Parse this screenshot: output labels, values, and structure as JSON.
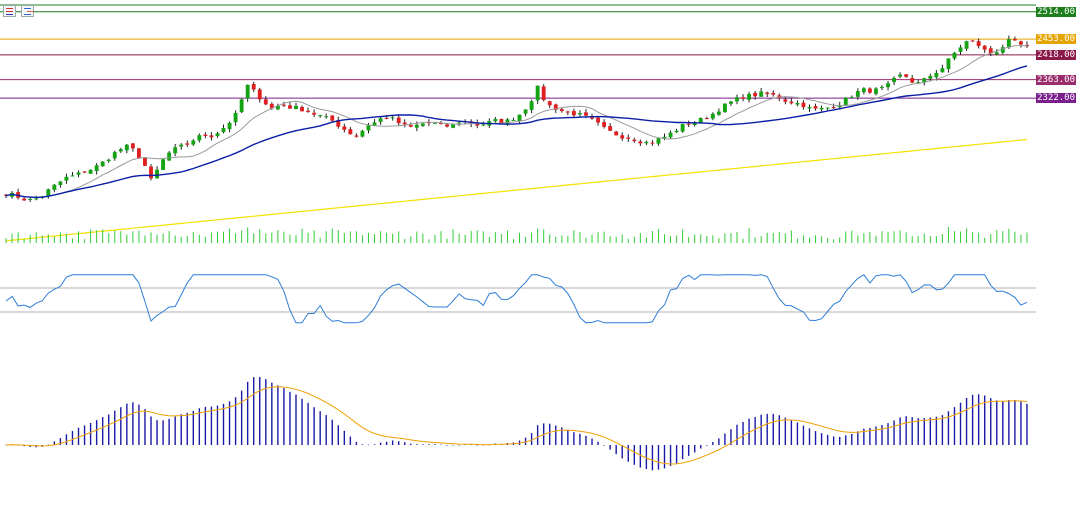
{
  "chart_data": [
    {
      "type": "candlestick",
      "panel": "price",
      "title": "",
      "y_range": [
        2000,
        2540
      ],
      "price_levels": [
        {
          "value": 2514.0,
          "label": "2514.00",
          "color": "#1b7f1b"
        },
        {
          "value": 2453.0,
          "label": "2453.00",
          "color": "#e5a300"
        },
        {
          "value": 2418.0,
          "label": "2418.00",
          "color": "#8b1a4a"
        },
        {
          "value": 2363.0,
          "label": "2363.00",
          "color": "#9b2d6e"
        },
        {
          "value": 2322.0,
          "label": "2322.00",
          "color": "#7a1f8c"
        }
      ],
      "close_path": [
        2110,
        2106,
        2098,
        2095,
        2102,
        2118,
        2132,
        2145,
        2150,
        2158,
        2165,
        2175,
        2190,
        2205,
        2215,
        2205,
        2180,
        2135,
        2178,
        2200,
        2212,
        2218,
        2232,
        2240,
        2238,
        2250,
        2268,
        2290,
        2352,
        2335,
        2315,
        2298,
        2308,
        2302,
        2300,
        2294,
        2286,
        2280,
        2272,
        2258,
        2245,
        2236,
        2262,
        2268,
        2280,
        2276,
        2264,
        2256,
        2262,
        2268,
        2265,
        2258,
        2262,
        2272,
        2268,
        2262,
        2266,
        2272,
        2268,
        2276,
        2288,
        2310,
        2346,
        2308,
        2300,
        2292,
        2288,
        2284,
        2276,
        2264,
        2250,
        2242,
        2236,
        2232,
        2226,
        2222,
        2230,
        2238,
        2250,
        2262,
        2268,
        2274,
        2282,
        2296,
        2308,
        2318,
        2326,
        2328,
        2332,
        2330,
        2325,
        2315,
        2312,
        2306,
        2296,
        2298,
        2302,
        2308,
        2320,
        2334,
        2340,
        2338,
        2342,
        2352,
        2372,
        2370,
        2352,
        2362,
        2376,
        2386,
        2410,
        2432,
        2448,
        2446,
        2428,
        2420,
        2434,
        2450,
        2442,
        2434
      ],
      "moving_averages": [
        {
          "name": "",
          "color": "#0b1fa6"
        },
        {
          "name": "",
          "color": "#9a9a9a"
        },
        {
          "name": "",
          "color": "#f2e100"
        }
      ],
      "volume": {
        "color": "#33cc33",
        "present": true
      }
    },
    {
      "type": "line",
      "panel": "oscillator",
      "title": "",
      "series": [
        {
          "color": "#2f7ed8"
        }
      ],
      "y_range": [
        0,
        100
      ],
      "levels": [
        30,
        70
      ]
    },
    {
      "type": "histogram",
      "panel": "macd",
      "title": "",
      "series": [
        {
          "color": "#1a1aa8"
        },
        {
          "color": "#f0a000"
        }
      ]
    }
  ]
}
